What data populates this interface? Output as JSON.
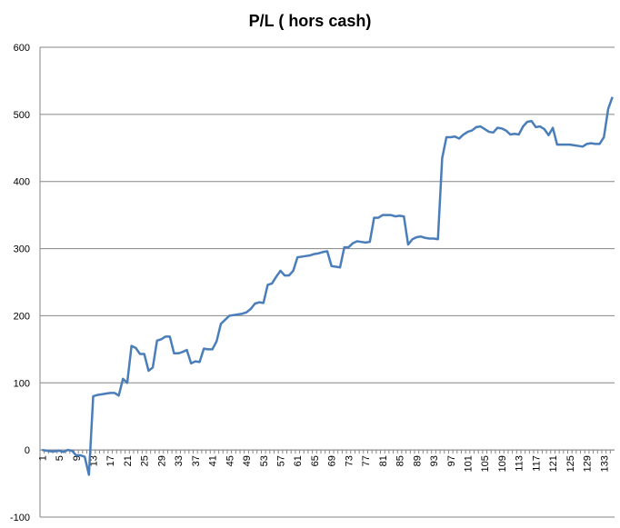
{
  "chart_data": {
    "type": "line",
    "title": "P/L ( hors cash)",
    "categories": [
      1,
      null,
      null,
      null,
      5,
      null,
      null,
      null,
      9,
      null,
      null,
      null,
      13,
      null,
      null,
      null,
      17,
      null,
      null,
      null,
      21,
      null,
      null,
      null,
      25,
      null,
      null,
      null,
      29,
      null,
      null,
      null,
      33,
      null,
      null,
      null,
      37,
      null,
      null,
      null,
      41,
      null,
      null,
      null,
      45,
      null,
      null,
      null,
      49,
      null,
      null,
      null,
      53,
      null,
      null,
      null,
      57,
      null,
      null,
      null,
      61,
      null,
      null,
      null,
      65,
      null,
      null,
      null,
      69,
      null,
      null,
      null,
      73,
      null,
      null,
      null,
      77,
      null,
      null,
      null,
      81,
      null,
      null,
      null,
      85,
      null,
      null,
      null,
      89,
      null,
      null,
      null,
      93,
      null,
      null,
      null,
      97,
      null,
      null,
      null,
      101,
      null,
      null,
      null,
      105,
      null,
      null,
      null,
      109,
      null,
      null,
      null,
      113,
      null,
      null,
      null,
      117,
      null,
      null,
      null,
      121,
      null,
      null,
      null,
      125,
      null,
      null,
      null,
      129,
      null,
      null,
      null,
      133,
      null,
      null
    ],
    "values": [
      0,
      -1,
      -2,
      -2,
      -1,
      -3,
      0,
      -1,
      -8,
      -8,
      -10,
      -37,
      80,
      82,
      83,
      84,
      85,
      85,
      81,
      106,
      100,
      155,
      152,
      143,
      143,
      118,
      123,
      163,
      165,
      169,
      169,
      144,
      144,
      146,
      149,
      129,
      132,
      131,
      151,
      150,
      150,
      162,
      188,
      194,
      200,
      201,
      202,
      203,
      205,
      210,
      218,
      220,
      219,
      246,
      248,
      258,
      267,
      260,
      260,
      267,
      287,
      288,
      289,
      290,
      292,
      293,
      295,
      296,
      274,
      273,
      272,
      302,
      302,
      308,
      311,
      310,
      309,
      310,
      346,
      346,
      350,
      350,
      350,
      348,
      349,
      348,
      306,
      314,
      317,
      318,
      316,
      315,
      315,
      314,
      435,
      466,
      466,
      467,
      464,
      470,
      474,
      476,
      481,
      482,
      478,
      474,
      473,
      480,
      479,
      476,
      470,
      471,
      470,
      482,
      489,
      490,
      481,
      482,
      478,
      469,
      480,
      455,
      455,
      455,
      455,
      454,
      453,
      452,
      456,
      457,
      456,
      456,
      466,
      508,
      526
    ],
    "color": "#4a7ebb",
    "ylim": [
      -100,
      600
    ],
    "yticks": [
      -100,
      0,
      100,
      200,
      300,
      400,
      500,
      600
    ],
    "grid": true
  }
}
